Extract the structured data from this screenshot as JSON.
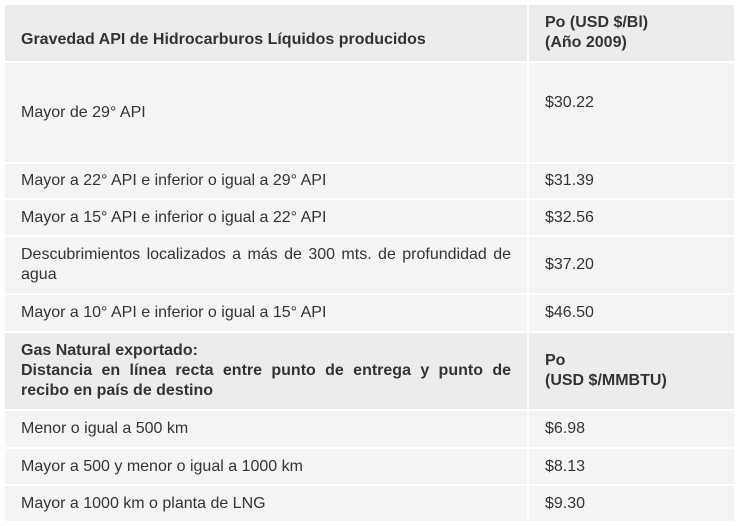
{
  "table1": {
    "header": [
      "Gravedad API de Hidrocarburos Líquidos producidos",
      "Po (USD $/Bl)",
      "(Año 2009)"
    ],
    "rows": [
      [
        "Mayor de 29° API",
        "$30.22"
      ],
      [
        "Mayor a 22° API e inferior o igual a 29° API",
        "$31.39"
      ],
      [
        "Mayor a 15° API e inferior o igual a 22° API",
        "$32.56"
      ],
      [
        "Descubrimientos localizados a más de 300 mts. de profundidad de agua",
        "$37.20"
      ],
      [
        "Mayor a 10° API e inferior o igual a 15° API",
        "$46.50"
      ]
    ]
  },
  "table2": {
    "header": [
      "Gas Natural exportado:",
      "Distancia en línea recta entre punto de entrega y punto de recibo en país de destino",
      "Po",
      "(USD $/MMBTU)"
    ],
    "rows": [
      [
        "Menor o igual a 500 km",
        "$6.98"
      ],
      [
        "Mayor a 500 y menor o igual a 1000 km",
        "$8.13"
      ],
      [
        "Mayor a 1000 km o planta de LNG",
        "$9.30"
      ]
    ]
  },
  "colors": {
    "header_bg": "#ececec",
    "row_bg": "#f4f4f4",
    "text": "#333333"
  }
}
